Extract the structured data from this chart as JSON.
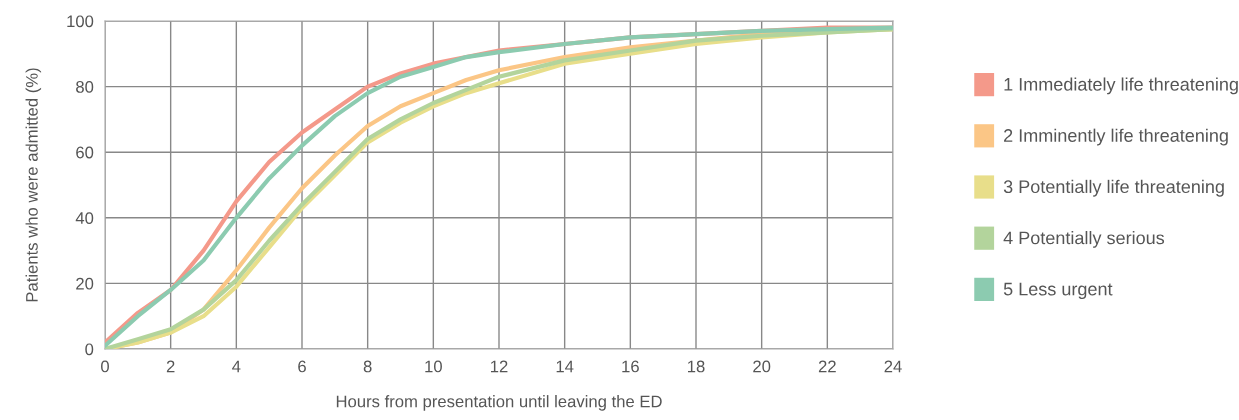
{
  "chart_data": {
    "type": "line",
    "xlabel": "Hours from presentation until leaving the ED",
    "ylabel": "Patients who were admitted (%)",
    "x": [
      0,
      1,
      2,
      3,
      4,
      5,
      6,
      7,
      8,
      9,
      10,
      11,
      12,
      14,
      16,
      18,
      20,
      22,
      24
    ],
    "series": [
      {
        "name": "1 Immediately life threatening",
        "color": "#f4998a",
        "values": [
          2,
          11,
          18,
          30,
          45,
          57,
          66,
          73,
          80,
          84,
          87,
          89,
          91,
          93,
          95,
          96,
          97,
          98,
          98
        ]
      },
      {
        "name": "2 Imminently life threatening",
        "color": "#fbc686",
        "values": [
          0,
          2,
          5,
          12,
          24,
          37,
          49,
          59,
          68,
          74,
          78,
          82,
          85,
          89,
          92,
          94,
          96,
          97,
          97.5
        ]
      },
      {
        "name": "3 Potentially life threatening",
        "color": "#e8de8a",
        "values": [
          0,
          2,
          5,
          10,
          19,
          31,
          43,
          53,
          63,
          69,
          74,
          78,
          81,
          87,
          90,
          93,
          95,
          96.5,
          97.5
        ]
      },
      {
        "name": "4 Potentially serious",
        "color": "#b3d49c",
        "values": [
          0,
          3,
          6,
          12,
          21,
          33,
          44,
          54,
          64,
          70,
          75,
          79,
          83,
          88,
          91,
          94,
          95.5,
          96.5,
          97.5
        ]
      },
      {
        "name": "5 Less urgent",
        "color": "#8ccbb0",
        "values": [
          1,
          10,
          18,
          27,
          40,
          52,
          62,
          71,
          78,
          83,
          86,
          89,
          90.5,
          93,
          95,
          96,
          97,
          97.5,
          98
        ]
      }
    ],
    "xlim": [
      0,
      24
    ],
    "xticks": [
      0,
      2,
      4,
      6,
      8,
      10,
      12,
      14,
      16,
      18,
      20,
      22,
      24
    ],
    "ylim": [
      0,
      100
    ],
    "yticks": [
      0,
      20,
      40,
      60,
      80,
      100
    ],
    "grid": true,
    "legend": "right",
    "marker": "none",
    "line_style": "solid"
  }
}
